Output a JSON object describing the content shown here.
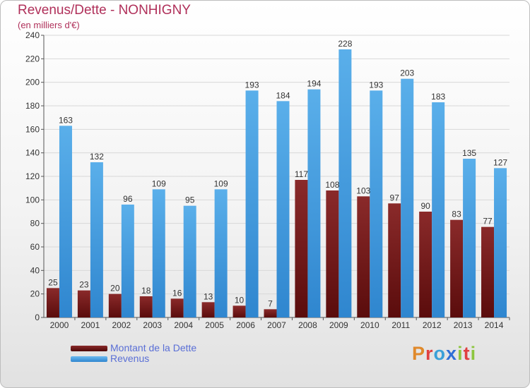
{
  "header": {
    "title": "Revenus/Dette - NONHIGNY",
    "subtitle": "(en milliers d'€)"
  },
  "brand": {
    "text": "Proxiti",
    "colors": [
      "#e0892b",
      "#e04040",
      "#3aa0d8",
      "#2f6fd6",
      "#8dc63f",
      "#e04040",
      "#8dc63f"
    ]
  },
  "chart_data": {
    "type": "bar",
    "title": "Revenus/Dette - NONHIGNY",
    "subtitle": "(en milliers d'€)",
    "categories": [
      "2000",
      "2001",
      "2002",
      "2003",
      "2004",
      "2005",
      "2006",
      "2007",
      "2008",
      "2009",
      "2010",
      "2011",
      "2012",
      "2013",
      "2014"
    ],
    "yticks": [
      "0",
      "20",
      "40",
      "60",
      "80",
      "100",
      "120",
      "140",
      "160",
      "180",
      "200",
      "220",
      "240"
    ],
    "ylim": [
      0,
      240
    ],
    "grid": true,
    "legend_position": "bottom-left",
    "series": [
      {
        "name": "Montant de la Dette",
        "color": "#7a1c1c",
        "values": [
          25,
          23,
          20,
          18,
          16,
          13,
          10,
          7,
          117,
          108,
          103,
          97,
          90,
          83,
          77
        ],
        "labels": [
          "25",
          "23",
          "20",
          "18",
          "16",
          "13",
          "10",
          "7",
          "117",
          "108",
          "103",
          "97",
          "90",
          "83",
          "77"
        ]
      },
      {
        "name": "Revenus",
        "color": "#4aa3e6",
        "values": [
          163,
          132,
          96,
          109,
          95,
          109,
          193,
          184,
          194,
          228,
          193,
          203,
          183,
          135,
          127
        ],
        "labels": [
          "163",
          "132",
          "96",
          "109",
          "95",
          "109",
          "193",
          "184",
          "194",
          "228",
          "193",
          "203",
          "183",
          "135",
          "127"
        ]
      }
    ]
  }
}
